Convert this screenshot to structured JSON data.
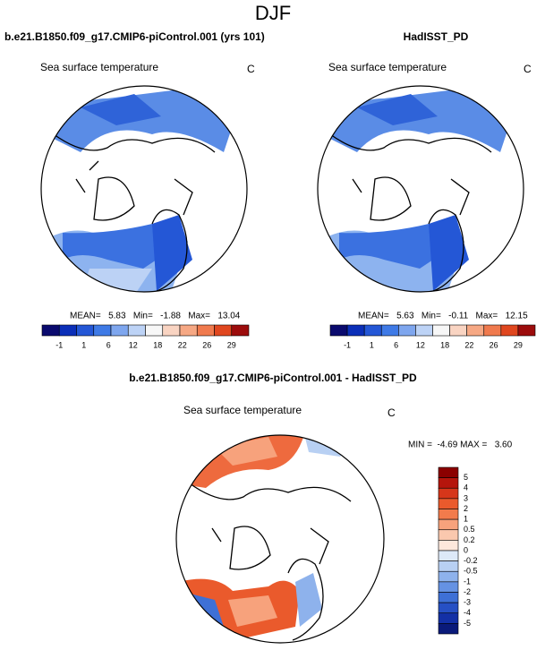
{
  "title": "DJF",
  "panels": [
    {
      "title": "b.e21.B1850.f09_g17.CMIP6-piControl.001 (yrs 101)",
      "subtitle": "Sea surface temperature",
      "units": "C",
      "stats": "MEAN=   5.83   Min=   -1.88   Max=   13.04",
      "colorbar": {
        "colors": [
          "#0a0a6e",
          "#0b2fb8",
          "#2457d6",
          "#3f7ae6",
          "#7ea6ee",
          "#bdd3f6",
          "#f7f7f7",
          "#f9d4c2",
          "#f6a884",
          "#f07a4e",
          "#e0471f",
          "#9c0c0c"
        ],
        "labels": [
          "-1",
          "1",
          "6",
          "12",
          "18",
          "22",
          "26",
          "29"
        ]
      }
    },
    {
      "title": "HadISST_PD",
      "subtitle": "Sea surface temperature",
      "units": "C",
      "stats": "MEAN=   5.63   Min=   -0.11   Max=   12.15",
      "colorbar": {
        "colors": [
          "#0a0a6e",
          "#0b2fb8",
          "#2457d6",
          "#3f7ae6",
          "#7ea6ee",
          "#bdd3f6",
          "#f7f7f7",
          "#f9d4c2",
          "#f6a884",
          "#f07a4e",
          "#e0471f",
          "#9c0c0c"
        ],
        "labels": [
          "-1",
          "1",
          "6",
          "12",
          "18",
          "22",
          "26",
          "29"
        ]
      }
    },
    {
      "title": "b.e21.B1850.f09_g17.CMIP6-piControl.001 - HadISST_PD",
      "subtitle": "Sea surface temperature",
      "units": "C",
      "stats": "MIN =  -4.69 MAX =   3.60",
      "colorbar": {
        "colors": [
          "#8b0000",
          "#b5150c",
          "#d6361a",
          "#ea5a2c",
          "#f27b4c",
          "#f7a27c",
          "#fac8ae",
          "#fde8dc",
          "#dde9f8",
          "#b8d0f3",
          "#8eb2ec",
          "#6592e3",
          "#3e70d6",
          "#2650c4",
          "#1330a6",
          "#0a1a7a"
        ],
        "labels": [
          "5",
          "4",
          "3",
          "2",
          "1",
          "0.5",
          "0.2",
          "0",
          "-0.2",
          "-0.5",
          "-1",
          "-2",
          "-3",
          "-4",
          "-5"
        ]
      }
    }
  ]
}
